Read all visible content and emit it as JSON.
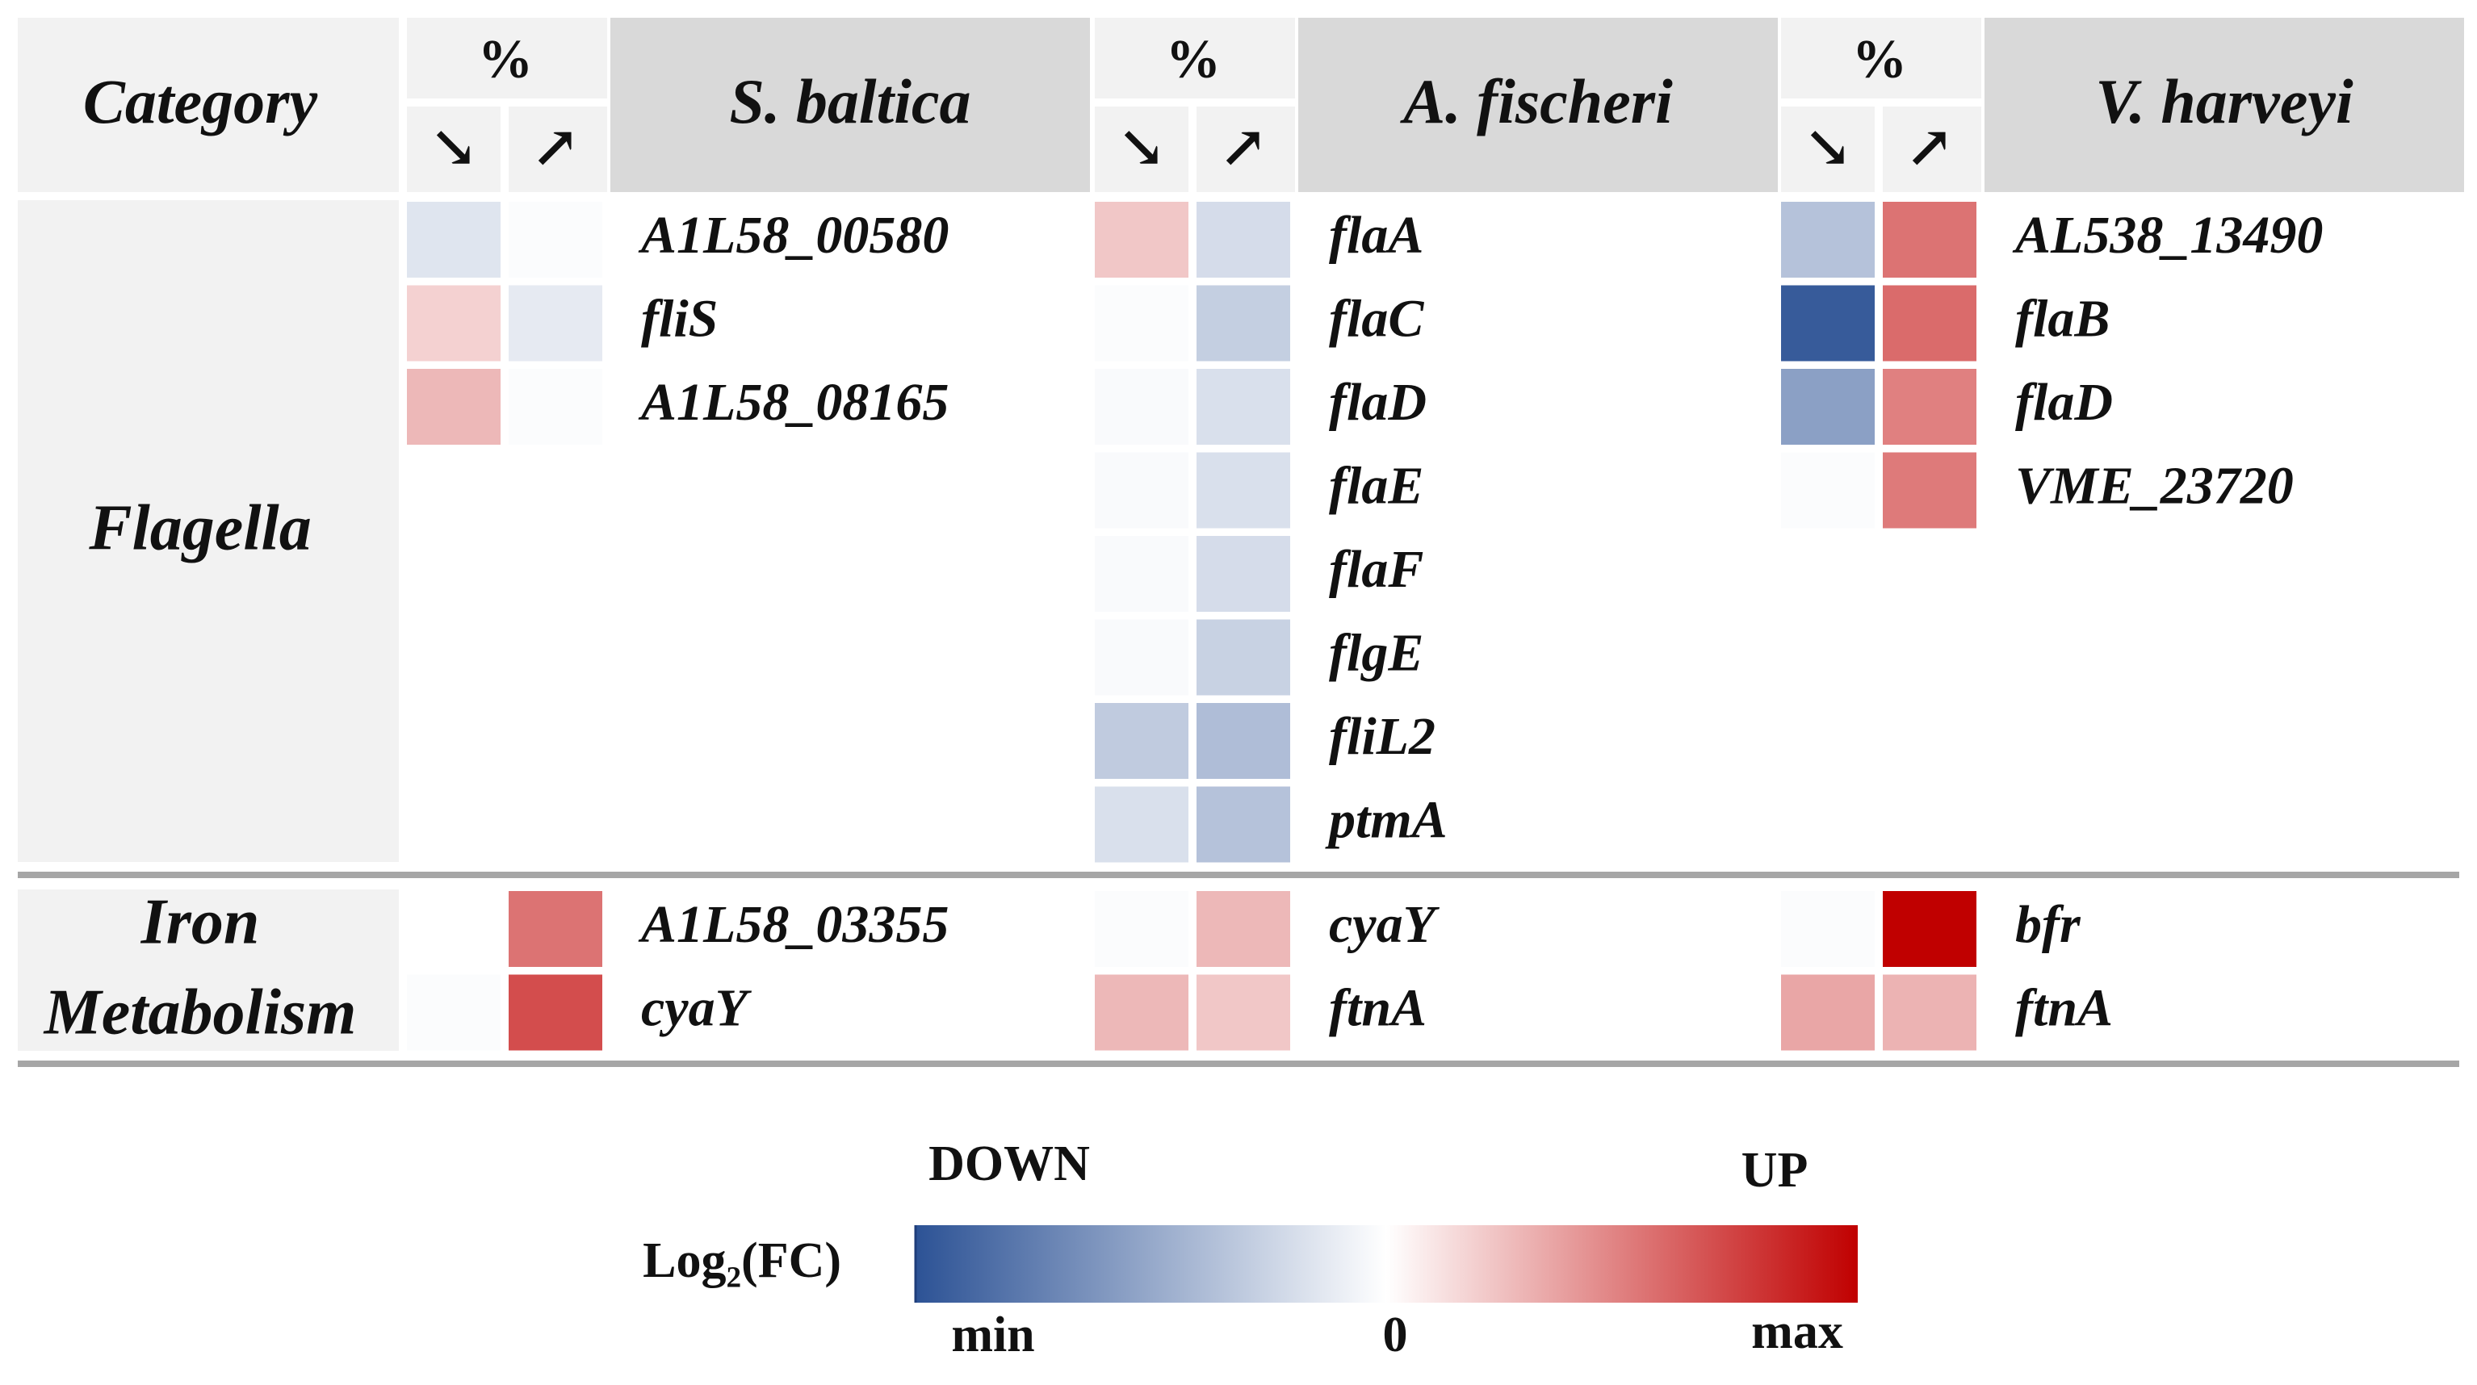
{
  "chart_data": {
    "type": "heatmap",
    "header": {
      "category": "Category",
      "percent": "%",
      "down_arrow": "↘",
      "up_arrow": "↗"
    },
    "species": [
      "S. baltica",
      "A. fischeri",
      "V. harveyi"
    ],
    "categories": [
      {
        "name_lines": [
          "Flagella"
        ],
        "rows": 8
      },
      {
        "name_lines": [
          "Iron",
          "Metabolism"
        ],
        "rows": 2
      }
    ],
    "panels": [
      {
        "species": "S. baltica",
        "genes": [
          {
            "category": "Flagella",
            "gene": "A1L58_00580",
            "down": -0.15,
            "up": -0.02
          },
          {
            "category": "Flagella",
            "gene": "fliS",
            "down": 0.18,
            "up": -0.12
          },
          {
            "category": "Flagella",
            "gene": "A1L58_08165",
            "down": 0.28,
            "up": -0.02
          },
          {
            "category": "Iron Metabolism",
            "gene": "A1L58_03355",
            "down": null,
            "up": 0.55
          },
          {
            "category": "Iron Metabolism",
            "gene": "cyaY",
            "down": -0.02,
            "up": 0.7
          }
        ]
      },
      {
        "species": "A. fischeri",
        "genes": [
          {
            "category": "Flagella",
            "gene": "flaA",
            "down": 0.22,
            "up": -0.2
          },
          {
            "category": "Flagella",
            "gene": "flaC",
            "down": -0.02,
            "up": -0.28
          },
          {
            "category": "Flagella",
            "gene": "flaD",
            "down": -0.03,
            "up": -0.18
          },
          {
            "category": "Flagella",
            "gene": "flaE",
            "down": -0.03,
            "up": -0.18
          },
          {
            "category": "Flagella",
            "gene": "flaF",
            "down": -0.03,
            "up": -0.2
          },
          {
            "category": "Flagella",
            "gene": "flgE",
            "down": -0.03,
            "up": -0.26
          },
          {
            "category": "Flagella",
            "gene": "fliL2",
            "down": -0.3,
            "up": -0.38
          },
          {
            "category": "Flagella",
            "gene": "ptmA",
            "down": -0.18,
            "up": -0.35
          },
          {
            "category": "Iron Metabolism",
            "gene": "cyaY",
            "down": -0.02,
            "up": 0.28
          },
          {
            "category": "Iron Metabolism",
            "gene": "ftnA",
            "down": 0.28,
            "up": 0.22
          }
        ]
      },
      {
        "species": "V. harveyi",
        "genes": [
          {
            "category": "Flagella",
            "gene": "AL538_13490",
            "down": -0.35,
            "up": 0.55
          },
          {
            "category": "Flagella",
            "gene": "flaB",
            "down": -0.95,
            "up": 0.58
          },
          {
            "category": "Flagella",
            "gene": "flaD",
            "down": -0.55,
            "up": 0.5
          },
          {
            "category": "Flagella",
            "gene": "VME_23720",
            "down": -0.02,
            "up": 0.52
          },
          {
            "category": "Iron Metabolism",
            "gene": "bfr",
            "down": -0.02,
            "up": 1.0
          },
          {
            "category": "Iron Metabolism",
            "gene": "ftnA",
            "down": 0.35,
            "up": 0.3
          }
        ]
      }
    ],
    "legend": {
      "title": "Log₂(FC)",
      "down_label": "DOWN",
      "up_label": "UP",
      "min_label": "min",
      "zero_label": "0",
      "max_label": "max"
    },
    "scale": {
      "min": -1,
      "max": 1
    },
    "colors": {
      "min": "#2c5295",
      "mid": "#ffffff",
      "max": "#c00000"
    }
  }
}
